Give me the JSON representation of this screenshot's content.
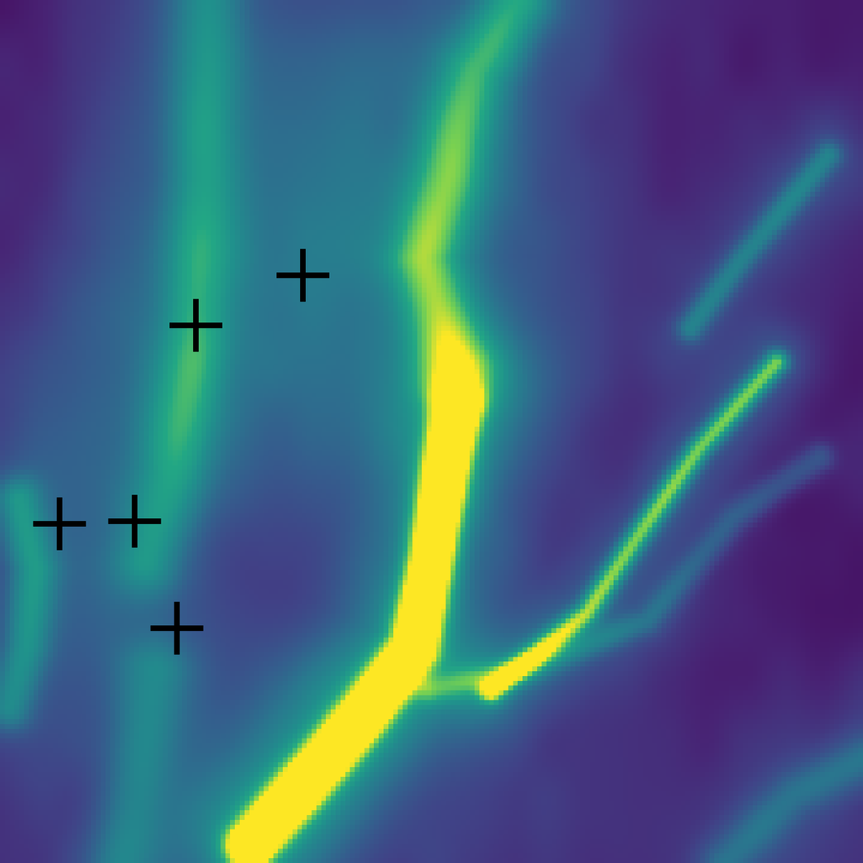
{
  "chart_data": {
    "type": "heatmap",
    "title": "",
    "xlabel": "",
    "ylabel": "",
    "colormap": "viridis",
    "axes_visible": false,
    "grid": false,
    "legend": "none",
    "value_range": [
      0,
      1
    ],
    "x_range": [
      0,
      1
    ],
    "y_range": [
      0,
      1
    ],
    "background_level": 0.06,
    "ridges": [
      {
        "name": "main-filament",
        "points": [
          [
            0.53,
            0.47
          ],
          [
            0.515,
            0.55
          ],
          [
            0.5,
            0.65
          ],
          [
            0.48,
            0.75
          ],
          [
            0.42,
            0.83
          ],
          [
            0.36,
            0.9
          ],
          [
            0.29,
            0.98
          ]
        ],
        "width": 0.018,
        "peak": 1.0
      },
      {
        "name": "upper-branch",
        "points": [
          [
            0.53,
            0.42
          ],
          [
            0.49,
            0.3
          ],
          [
            0.52,
            0.2
          ],
          [
            0.55,
            0.08
          ],
          [
            0.6,
            0.0
          ]
        ],
        "width": 0.03,
        "peak": 0.42
      },
      {
        "name": "right-diagonal",
        "points": [
          [
            0.9,
            0.42
          ],
          [
            0.81,
            0.52
          ],
          [
            0.74,
            0.62
          ],
          [
            0.68,
            0.71
          ],
          [
            0.57,
            0.8
          ]
        ],
        "width": 0.01,
        "peak": 0.55
      },
      {
        "name": "right-diagonal-outer",
        "points": [
          [
            0.96,
            0.18
          ],
          [
            0.86,
            0.3
          ],
          [
            0.8,
            0.38
          ]
        ],
        "width": 0.012,
        "peak": 0.3
      },
      {
        "name": "left-lane",
        "points": [
          [
            0.24,
            0.0
          ],
          [
            0.235,
            0.2
          ],
          [
            0.225,
            0.4
          ],
          [
            0.2,
            0.55
          ],
          [
            0.17,
            0.65
          ]
        ],
        "width": 0.03,
        "peak": 0.3
      },
      {
        "name": "left-edge",
        "points": [
          [
            0.02,
            0.58
          ],
          [
            0.04,
            0.66
          ],
          [
            0.03,
            0.75
          ],
          [
            0.01,
            0.82
          ]
        ],
        "width": 0.02,
        "peak": 0.32
      },
      {
        "name": "lower-left",
        "points": [
          [
            0.18,
            0.78
          ],
          [
            0.16,
            0.9
          ],
          [
            0.14,
            1.0
          ]
        ],
        "width": 0.03,
        "peak": 0.28
      },
      {
        "name": "lower-right-arc",
        "points": [
          [
            0.5,
            0.8
          ],
          [
            0.62,
            0.77
          ],
          [
            0.75,
            0.72
          ],
          [
            0.85,
            0.6
          ],
          [
            0.95,
            0.53
          ]
        ],
        "width": 0.012,
        "peak": 0.22
      },
      {
        "name": "bottom-right-arc",
        "points": [
          [
            0.84,
            1.0
          ],
          [
            0.92,
            0.92
          ],
          [
            1.0,
            0.88
          ]
        ],
        "width": 0.02,
        "peak": 0.25
      }
    ],
    "diffuse_glow": [
      {
        "name": "upper-middle-haze",
        "center": [
          0.42,
          0.22
        ],
        "radius": 0.18,
        "peak": 0.22
      },
      {
        "name": "mid-left-haze",
        "center": [
          0.2,
          0.45
        ],
        "radius": 0.14,
        "peak": 0.18
      },
      {
        "name": "lower-center-haze",
        "center": [
          0.4,
          0.85
        ],
        "radius": 0.16,
        "peak": 0.2
      }
    ],
    "dark_regions": [
      {
        "name": "cavity-center",
        "center": [
          0.3,
          0.66
        ],
        "radius": 0.07,
        "depth": 0.08
      },
      {
        "name": "right-void",
        "center": [
          0.9,
          0.6
        ],
        "radius": 0.1,
        "depth": 0.06
      },
      {
        "name": "upper-right-void",
        "center": [
          0.72,
          0.2
        ],
        "radius": 0.12,
        "depth": 0.05
      }
    ],
    "markers": [
      {
        "name": "marker-1",
        "x": 0.351,
        "y": 0.319
      },
      {
        "name": "marker-2",
        "x": 0.227,
        "y": 0.377
      },
      {
        "name": "marker-3",
        "x": 0.069,
        "y": 0.607
      },
      {
        "name": "marker-4",
        "x": 0.156,
        "y": 0.604
      },
      {
        "name": "marker-5",
        "x": 0.205,
        "y": 0.728
      }
    ],
    "marker_style": {
      "symbol": "plus",
      "color": "#000000"
    }
  }
}
